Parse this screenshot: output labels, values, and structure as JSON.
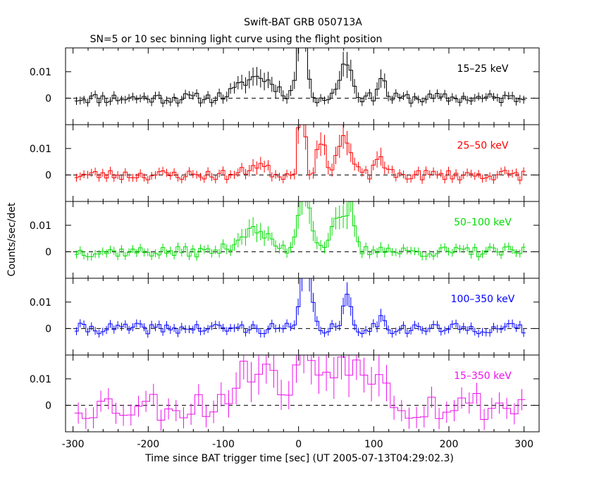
{
  "chart_data": {
    "type": "line",
    "title": "Swift-BAT GRB 050713A",
    "subtitle": "SN=5 or 10 sec binning light curve using the flight position",
    "xlabel": "Time since BAT trigger time [sec] (UT 2005-07-13T04:29:02.3)",
    "ylabel": "Counts/sec/det",
    "xlim": [
      -310,
      320
    ],
    "ylim": [
      -0.01,
      0.019
    ],
    "x_ticks": [
      "-300",
      "-200",
      "-100",
      "0",
      "100",
      "200",
      "300"
    ],
    "y_ticks": [
      "0",
      "0.01"
    ],
    "panels": [
      {
        "name": "15-25 keV",
        "label": "15–25 keV",
        "color": "#000000",
        "seed": 11,
        "features": [
          [
            -55,
            22,
            0.008
          ],
          [
            5,
            6,
            0.03
          ],
          [
            63,
            8,
            0.014
          ],
          [
            110,
            5,
            0.008
          ]
        ]
      },
      {
        "name": "25-50 keV",
        "label": "25–50 keV",
        "color": "#ff0000",
        "seed": 23,
        "features": [
          [
            -55,
            12,
            0.004
          ],
          [
            4,
            4,
            0.035
          ],
          [
            30,
            6,
            0.012
          ],
          [
            60,
            9,
            0.014
          ],
          [
            108,
            5,
            0.008
          ]
        ]
      },
      {
        "name": "50-100 keV",
        "label": "50–100 keV",
        "color": "#00dd00",
        "seed": 37,
        "features": [
          [
            -60,
            20,
            0.008
          ],
          [
            8,
            8,
            0.025
          ],
          [
            55,
            12,
            0.012
          ],
          [
            70,
            4,
            0.014
          ],
          [
            110,
            6,
            0.002
          ]
        ]
      },
      {
        "name": "100-350 keV",
        "label": "100–350 keV",
        "color": "#0000ff",
        "seed": 41,
        "features": [
          [
            10,
            6,
            0.03
          ],
          [
            65,
            5,
            0.012
          ],
          [
            110,
            5,
            0.004
          ]
        ]
      },
      {
        "name": "15-350 keV",
        "label": "15–350 keV",
        "color": "#ee11ee",
        "seed": 53,
        "features": [
          [
            -55,
            25,
            0.015
          ],
          [
            10,
            10,
            0.02
          ],
          [
            60,
            25,
            0.018
          ],
          [
            110,
            8,
            0.015
          ]
        ]
      }
    ]
  }
}
